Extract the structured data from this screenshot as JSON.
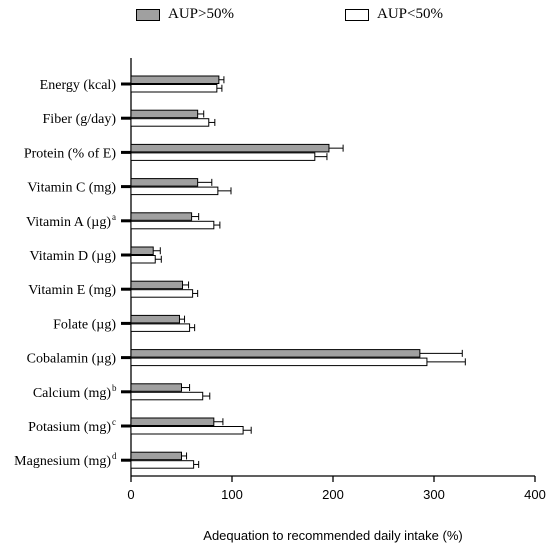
{
  "chart_data": {
    "type": "bar",
    "orientation": "horizontal",
    "categories": [
      {
        "label": "Energy (kcal)",
        "sup": ""
      },
      {
        "label": "Fiber (g/day)",
        "sup": ""
      },
      {
        "label": "Protein (% of E)",
        "sup": ""
      },
      {
        "label": "Vitamin C (mg)",
        "sup": ""
      },
      {
        "label": "Vitamin A (µg)",
        "sup": "a"
      },
      {
        "label": "Vitamin D (µg)",
        "sup": ""
      },
      {
        "label": "Vitamin E (mg)",
        "sup": ""
      },
      {
        "label": "Folate (µg)",
        "sup": ""
      },
      {
        "label": "Cobalamin (µg)",
        "sup": ""
      },
      {
        "label": "Calcium (mg)",
        "sup": "b"
      },
      {
        "label": "Potasium (mg)",
        "sup": "c"
      },
      {
        "label": "Magnesium (mg)",
        "sup": "d"
      }
    ],
    "series": [
      {
        "name": "AUP>50%",
        "color": "#a0a0a0",
        "values": [
          87,
          66,
          196,
          66,
          60,
          22,
          51,
          48,
          286,
          50,
          82,
          50
        ],
        "errors": [
          5,
          6,
          14,
          14,
          7,
          7,
          6,
          5,
          42,
          8,
          9,
          5
        ]
      },
      {
        "name": "AUP<50%",
        "color": "#ffffff",
        "values": [
          85,
          77,
          182,
          86,
          82,
          24,
          61,
          58,
          293,
          71,
          111,
          62
        ],
        "errors": [
          5,
          6,
          12,
          13,
          6,
          6,
          5,
          5,
          38,
          7,
          8,
          5
        ]
      }
    ],
    "xlabel": "Adequation to recommended daily intake (%)",
    "ylabel": "",
    "xlim": [
      0,
      400
    ],
    "xticks": [
      0,
      100,
      200,
      300,
      400
    ],
    "legend_position": "top",
    "grid": false
  }
}
